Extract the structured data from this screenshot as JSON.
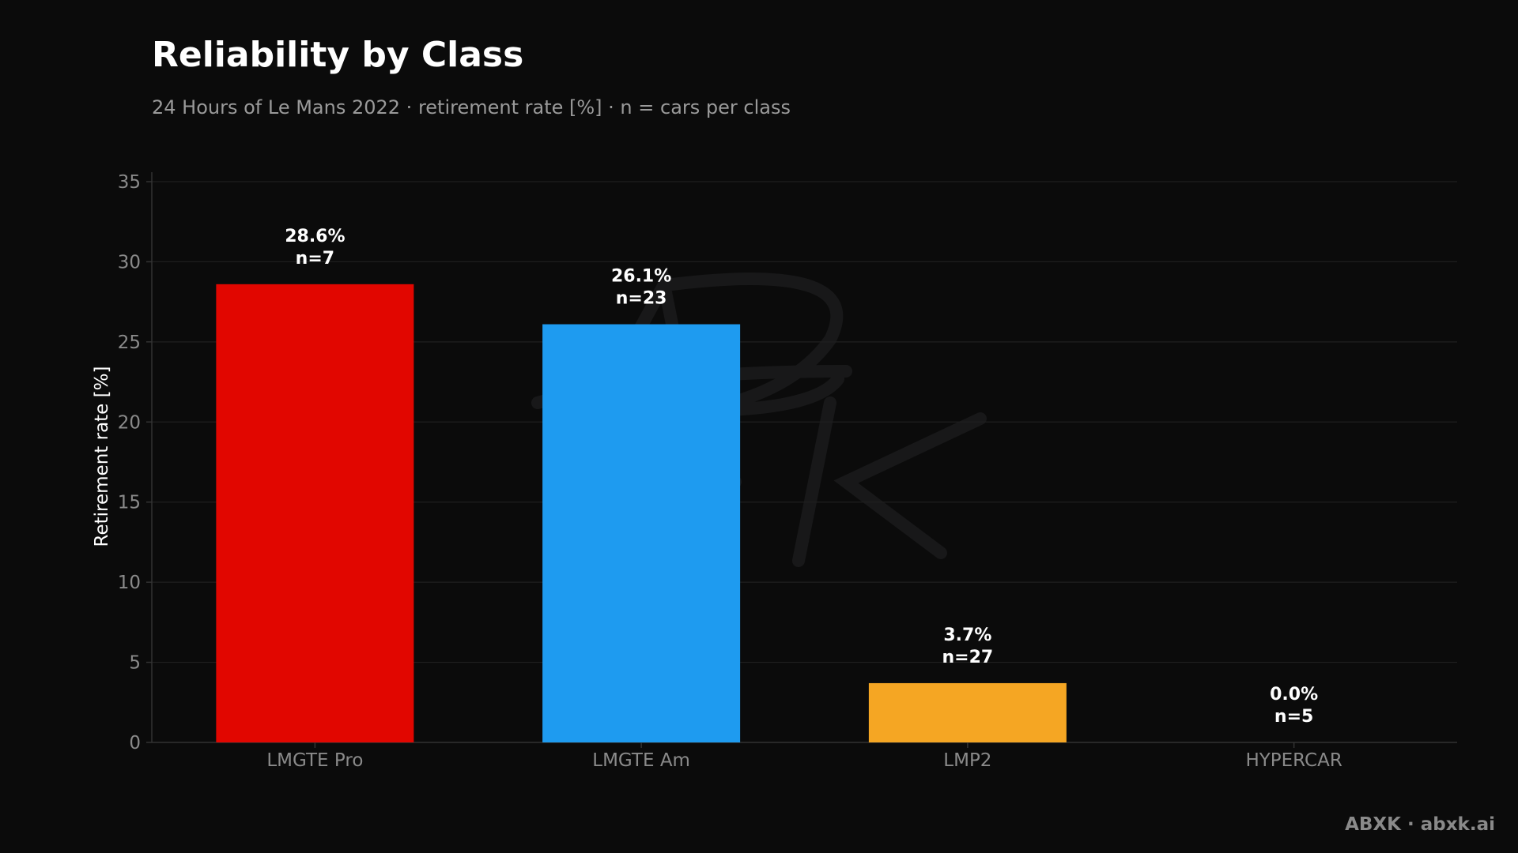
{
  "title": "Reliability by Class",
  "subtitle": "24 Hours of Le Mans 2022 · retirement rate [%] · n = cars per class",
  "footer": "ABXK · abxk.ai",
  "watermark_text": "ABXK",
  "chart_data": {
    "type": "bar",
    "title": "Reliability by Class",
    "subtitle": "24 Hours of Le Mans 2022 · retirement rate [%] · n = cars per class",
    "xlabel": "",
    "ylabel": "Retirement rate [%]",
    "ylim": [
      0,
      35
    ],
    "yticks": [
      0,
      5,
      10,
      15,
      20,
      25,
      30,
      35
    ],
    "grid": true,
    "categories": [
      "LMGTE Pro",
      "LMGTE Am",
      "LMP2",
      "HYPERCAR"
    ],
    "values": [
      28.6,
      26.1,
      3.7,
      0.0
    ],
    "value_labels": [
      "28.6%",
      "26.1%",
      "3.7%",
      "0.0%"
    ],
    "n_labels": [
      "n=7",
      "n=23",
      "n=27",
      "n=5"
    ],
    "colors": [
      "#e10600",
      "#1e9bf0",
      "#f5a623",
      "#8c8c8c"
    ]
  },
  "colors": {
    "background": "#0b0b0b",
    "grid": "#1f1f1f",
    "axis": "#333333",
    "tick_text": "#8a8a8a",
    "label_text": "#ffffff"
  }
}
